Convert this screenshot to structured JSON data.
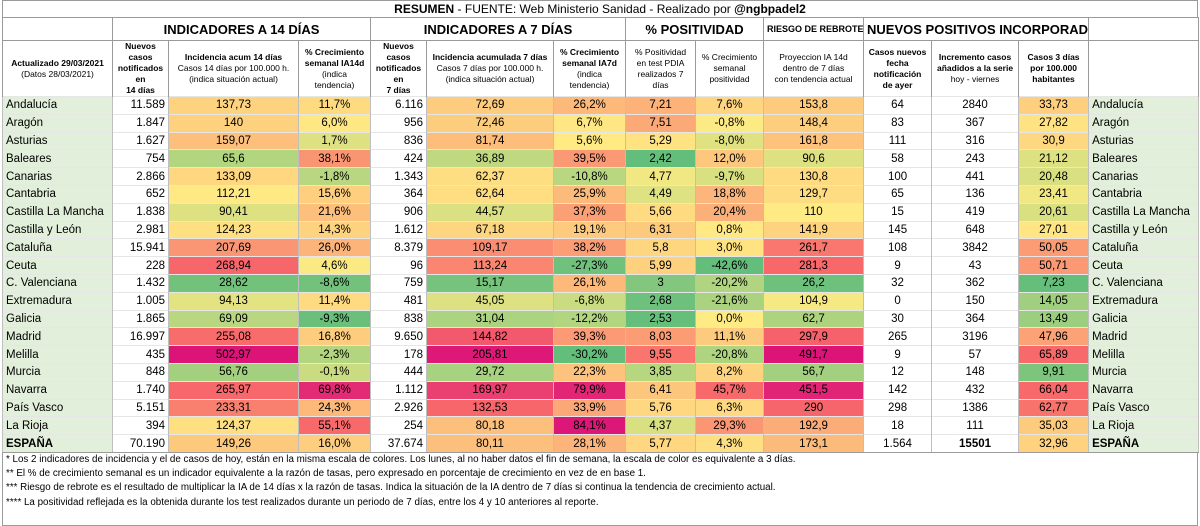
{
  "title": {
    "resumen": "RESUMEN",
    "fuente": "- FUENTE: Web Ministerio Sanidad  - Realizado por",
    "author": "@ngbpadel2"
  },
  "groups": {
    "g14": "INDICADORES A 14 DÍAS",
    "g7": "INDICADORES A 7 DÍAS",
    "pos": "% POSITIVIDAD",
    "riesgo": "RIESGO DE REBROTE",
    "nuevos": "NUEVOS POSITIVOS INCORPORADOS"
  },
  "sub": {
    "act1": "Actualizado 29/03/2021",
    "act2": "(Datos 28/03/2021)",
    "c1a": "Nuevos casos",
    "c1b": "notificados en",
    "c1c": "14 días",
    "c2a": "Incidencia acum 14 días",
    "c2b": "Casos 14 días por 100.000 h.",
    "c2c": "(indica situación actual)",
    "c3a": "% Crecimiento",
    "c3b": "semanal IA14d",
    "c3c": "(indica tendencia)",
    "c4a": "Nuevos casos",
    "c4b": "notificados en",
    "c4c": "7 días",
    "c5a": "Incidencia acumulada 7 días",
    "c5b": "Casos 7 días por 100.000 h.",
    "c5c": "(indica situación actual)",
    "c6a": "% Crecimiento",
    "c6b": "semanal IA7d",
    "c6c": "(indica tendencia)",
    "c7a": "% Positividad",
    "c7b": "en test PDIA",
    "c7c": "realizados 7 días",
    "c8a": "% Crecimiento",
    "c8b": "semanal",
    "c8c": "positividad",
    "c9a": "Proyeccion IA 14d",
    "c9b": "dentro de 7 días",
    "c9c": "con tendencia actual",
    "c10a": "Casos nuevos",
    "c10b": "fecha notificación",
    "c10c": "de ayer",
    "c11a": "Incremento casos",
    "c11b": "añadidos a la serie",
    "c11c": "hoy - viernes",
    "c12a": "Casos 3 días",
    "c12b": "por 100.000",
    "c12c": "habitantes"
  },
  "rows": [
    {
      "name": "Andalucía",
      "c14": "11.589",
      "ia14": "137,73",
      "g14": "11,7%",
      "c7": "6.116",
      "ia7": "72,69",
      "g7": "26,2%",
      "pos": "7,21",
      "gpos": "7,6%",
      "proy": "153,8",
      "ayer": "64",
      "inc": "2840",
      "c3": "33,73"
    },
    {
      "name": "Aragón",
      "c14": "1.847",
      "ia14": "140",
      "g14": "6,0%",
      "c7": "956",
      "ia7": "72,46",
      "g7": "6,7%",
      "pos": "7,51",
      "gpos": "-0,8%",
      "proy": "148,4",
      "ayer": "83",
      "inc": "367",
      "c3": "27,82"
    },
    {
      "name": "Asturias",
      "c14": "1.627",
      "ia14": "159,07",
      "g14": "1,7%",
      "c7": "836",
      "ia7": "81,74",
      "g7": "5,6%",
      "pos": "5,29",
      "gpos": "-8,0%",
      "proy": "161,8",
      "ayer": "111",
      "inc": "316",
      "c3": "30,9"
    },
    {
      "name": "Baleares",
      "c14": "754",
      "ia14": "65,6",
      "g14": "38,1%",
      "c7": "424",
      "ia7": "36,89",
      "g7": "39,5%",
      "pos": "2,42",
      "gpos": "12,0%",
      "proy": "90,6",
      "ayer": "58",
      "inc": "243",
      "c3": "21,12"
    },
    {
      "name": "Canarias",
      "c14": "2.866",
      "ia14": "133,09",
      "g14": "-1,8%",
      "c7": "1.343",
      "ia7": "62,37",
      "g7": "-10,8%",
      "pos": "4,77",
      "gpos": "-9,7%",
      "proy": "130,8",
      "ayer": "100",
      "inc": "441",
      "c3": "20,48"
    },
    {
      "name": "Cantabria",
      "c14": "652",
      "ia14": "112,21",
      "g14": "15,6%",
      "c7": "364",
      "ia7": "62,64",
      "g7": "25,9%",
      "pos": "4,49",
      "gpos": "18,8%",
      "proy": "129,7",
      "ayer": "65",
      "inc": "136",
      "c3": "23,41"
    },
    {
      "name": "Castilla La Mancha",
      "c14": "1.838",
      "ia14": "90,41",
      "g14": "21,6%",
      "c7": "906",
      "ia7": "44,57",
      "g7": "37,3%",
      "pos": "5,66",
      "gpos": "20,4%",
      "proy": "110",
      "ayer": "15",
      "inc": "419",
      "c3": "20,61"
    },
    {
      "name": "Castilla y León",
      "c14": "2.981",
      "ia14": "124,23",
      "g14": "14,3%",
      "c7": "1.612",
      "ia7": "67,18",
      "g7": "19,1%",
      "pos": "6,31",
      "gpos": "0,8%",
      "proy": "141,9",
      "ayer": "145",
      "inc": "648",
      "c3": "27,01"
    },
    {
      "name": "Cataluña",
      "c14": "15.941",
      "ia14": "207,69",
      "g14": "26,0%",
      "c7": "8.379",
      "ia7": "109,17",
      "g7": "38,2%",
      "pos": "5,8",
      "gpos": "3,0%",
      "proy": "261,7",
      "ayer": "108",
      "inc": "3842",
      "c3": "50,05"
    },
    {
      "name": "Ceuta",
      "c14": "228",
      "ia14": "268,94",
      "g14": "4,6%",
      "c7": "96",
      "ia7": "113,24",
      "g7": "-27,3%",
      "pos": "5,99",
      "gpos": "-42,6%",
      "proy": "281,3",
      "ayer": "9",
      "inc": "43",
      "c3": "50,71"
    },
    {
      "name": "C. Valenciana",
      "c14": "1.432",
      "ia14": "28,62",
      "g14": "-8,6%",
      "c7": "759",
      "ia7": "15,17",
      "g7": "26,1%",
      "pos": "3",
      "gpos": "-20,2%",
      "proy": "26,2",
      "ayer": "32",
      "inc": "362",
      "c3": "7,23"
    },
    {
      "name": "Extremadura",
      "c14": "1.005",
      "ia14": "94,13",
      "g14": "11,4%",
      "c7": "481",
      "ia7": "45,05",
      "g7": "-6,8%",
      "pos": "2,68",
      "gpos": "-21,6%",
      "proy": "104,9",
      "ayer": "0",
      "inc": "150",
      "c3": "14,05"
    },
    {
      "name": "Galicia",
      "c14": "1.865",
      "ia14": "69,09",
      "g14": "-9,3%",
      "c7": "838",
      "ia7": "31,04",
      "g7": "-12,2%",
      "pos": "2,53",
      "gpos": "0,0%",
      "proy": "62,7",
      "ayer": "30",
      "inc": "364",
      "c3": "13,49"
    },
    {
      "name": "Madrid",
      "c14": "16.997",
      "ia14": "255,08",
      "g14": "16,8%",
      "c7": "9.650",
      "ia7": "144,82",
      "g7": "39,3%",
      "pos": "8,03",
      "gpos": "11,1%",
      "proy": "297,9",
      "ayer": "265",
      "inc": "3196",
      "c3": "47,96"
    },
    {
      "name": "Melilla",
      "c14": "435",
      "ia14": "502,97",
      "g14": "-2,3%",
      "c7": "178",
      "ia7": "205,81",
      "g7": "-30,2%",
      "pos": "9,55",
      "gpos": "-20,8%",
      "proy": "491,7",
      "ayer": "9",
      "inc": "57",
      "c3": "65,89"
    },
    {
      "name": "Murcia",
      "c14": "848",
      "ia14": "56,76",
      "g14": "-0,1%",
      "c7": "444",
      "ia7": "29,72",
      "g7": "22,3%",
      "pos": "3,85",
      "gpos": "8,2%",
      "proy": "56,7",
      "ayer": "12",
      "inc": "148",
      "c3": "9,91"
    },
    {
      "name": "Navarra",
      "c14": "1.740",
      "ia14": "265,97",
      "g14": "69,8%",
      "c7": "1.112",
      "ia7": "169,97",
      "g7": "79,9%",
      "pos": "6,41",
      "gpos": "45,7%",
      "proy": "451,5",
      "ayer": "142",
      "inc": "432",
      "c3": "66,04"
    },
    {
      "name": "País Vasco",
      "c14": "5.151",
      "ia14": "233,31",
      "g14": "24,3%",
      "c7": "2.926",
      "ia7": "132,53",
      "g7": "33,9%",
      "pos": "5,76",
      "gpos": "6,3%",
      "proy": "290",
      "ayer": "298",
      "inc": "1386",
      "c3": "62,77"
    },
    {
      "name": "La Rioja",
      "c14": "394",
      "ia14": "124,37",
      "g14": "55,1%",
      "c7": "254",
      "ia7": "80,18",
      "g7": "84,1%",
      "pos": "4,37",
      "gpos": "29,3%",
      "proy": "192,9",
      "ayer": "18",
      "inc": "111",
      "c3": "35,03"
    }
  ],
  "total": {
    "name": "ESPAÑA",
    "c14": "70.190",
    "ia14": "149,26",
    "g14": "16,0%",
    "c7": "37.674",
    "ia7": "80,11",
    "g7": "28,1%",
    "pos": "5,77",
    "gpos": "4,3%",
    "proy": "173,1",
    "ayer": "1.564",
    "inc": "15501",
    "c3": "32,96"
  },
  "notes": [
    "* Los 2 indicadores de incidencia y el de casos de hoy, están en la misma escala de colores. Los lunes, al no haber datos el fin de semana, la escala de color es equivalente a 3 días.",
    "** El % de crecimiento semanal es un indicador equivalente a la razón de tasas, pero expresado en porcentaje de crecimiento en vez de en base 1.",
    "*** Riesgo de rebrote es el resultado de multiplicar la IA de 14 días x la razón de tasas. Indica la situación de la IA dentro de 7 días si continua la tendencia de crecimiento actual.",
    "**** La positividad reflejada es la obtenida durante los test realizados durante un periodo de 7 días, entre los 4 y 10 anteriores al reporte."
  ]
}
